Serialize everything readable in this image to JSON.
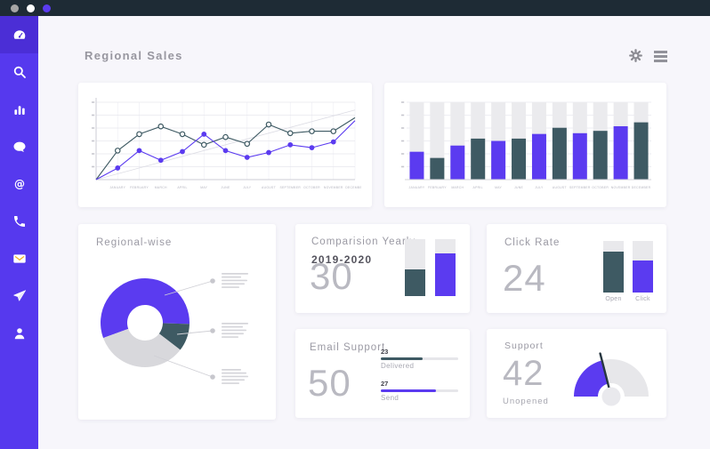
{
  "window": {
    "dots": [
      "#a6a6a6",
      "#ffffff",
      "#5b3bf0"
    ]
  },
  "colors": {
    "topbar": "#1e2b35",
    "sidebar": "#5639ee",
    "sidebar_active": "#4b2ed6",
    "background": "#f7f6fb",
    "card": "#ffffff",
    "accent_purple": "#5b3bf0",
    "dark_teal": "#3e5a63",
    "title_text": "#97969f",
    "big_number": "#b9b9c1"
  },
  "sidebar": {
    "items": [
      {
        "name": "dashboard",
        "icon": "dashboard-gauge-icon",
        "active": true
      },
      {
        "name": "search",
        "icon": "search-icon",
        "active": false
      },
      {
        "name": "analytics",
        "icon": "bar-chart-icon",
        "active": false
      },
      {
        "name": "messages",
        "icon": "chat-bubble-icon",
        "active": false
      },
      {
        "name": "mentions",
        "icon": "at-sign-icon",
        "active": false
      },
      {
        "name": "calls",
        "icon": "phone-icon",
        "active": false
      },
      {
        "name": "mail",
        "icon": "envelope-icon",
        "active": false
      },
      {
        "name": "send",
        "icon": "paper-plane-icon",
        "active": false
      },
      {
        "name": "profile",
        "icon": "user-icon",
        "active": false
      }
    ]
  },
  "header": {
    "title": "Regional Sales",
    "icons": [
      "gear-icon",
      "menu-icon"
    ]
  },
  "chart_data": [
    {
      "id": "regional-sales-line",
      "type": "line",
      "x": [
        "JANUARY",
        "FEBRUARY",
        "MARCH",
        "APRIL",
        "MAY",
        "JUNE",
        "JULY",
        "AUGUST",
        "SEPTEMBER",
        "OCTOBER",
        "NOVEMBER",
        "DECEMBER"
      ],
      "series": [
        {
          "name": "dark",
          "color": "#3e5a63",
          "marker": "open",
          "values": [
            30,
            47,
            55,
            47,
            36,
            44,
            37,
            57,
            48,
            50,
            50,
            64
          ]
        },
        {
          "name": "purple",
          "color": "#5b3bf0",
          "marker": "filled",
          "values": [
            12,
            30,
            20,
            29,
            47,
            30,
            23,
            28,
            36,
            33,
            39,
            61
          ]
        }
      ],
      "trendline": {
        "from": 0,
        "to": 72,
        "color": "#dcdce4"
      },
      "ylim": [
        0,
        80
      ],
      "y_tick_count": 6,
      "grid": true,
      "starts_at_origin": true
    },
    {
      "id": "monthly-bars",
      "type": "bar",
      "categories": [
        "JANUARY",
        "FEBRUARY",
        "MARCH",
        "APRIL",
        "MAY",
        "JUNE",
        "JULY",
        "AUGUST",
        "SEPTEMBER",
        "OCTOBER",
        "NOVEMBER",
        "DECEMBER"
      ],
      "values": [
        36,
        28,
        44,
        53,
        50,
        53,
        59,
        67,
        60,
        63,
        69,
        74
      ],
      "bar_colors": [
        "#5b3bf0",
        "#3e5a63"
      ],
      "alternating": true,
      "track_color": "#ebebee",
      "ylim": [
        0,
        100
      ],
      "y_tick_count": 6
    },
    {
      "id": "regional-wise-donut",
      "type": "pie",
      "title": "Regional-wise",
      "donut": true,
      "start_angle_deg": 200,
      "slices": [
        {
          "color": "#5b3bf0",
          "pct": 56
        },
        {
          "color": "#3e5a63",
          "pct": 10
        },
        {
          "color": "#d8d8dc",
          "pct": 34
        }
      ],
      "callouts": 3
    },
    {
      "id": "comparision-yearly",
      "type": "bar",
      "title": "Comparision Yearly",
      "subtitle": "2019-2020",
      "big_number": "30",
      "track_color": "#e9e9ec",
      "bars": [
        {
          "color": "#3e5a63",
          "fill_pct": 47
        },
        {
          "color": "#5b3bf0",
          "fill_pct": 75
        }
      ]
    },
    {
      "id": "click-rate",
      "type": "bar",
      "title": "Click Rate",
      "big_number": "24",
      "track_color": "#e9e9ec",
      "bars": [
        {
          "label": "Open",
          "color": "#3e5a63",
          "fill_pct": 80
        },
        {
          "label": "Click",
          "color": "#5b3bf0",
          "fill_pct": 62
        }
      ]
    },
    {
      "id": "email-support",
      "type": "bar",
      "title": "Email Support",
      "big_number": "50",
      "track_color": "#e6e6ea",
      "bars": [
        {
          "label": "Delivered",
          "value": 23,
          "color": "#3e5a63",
          "fill_pct": 54
        },
        {
          "label": "Send",
          "value": 27,
          "color": "#5b3bf0",
          "fill_pct": 71
        }
      ]
    },
    {
      "id": "support-gauge",
      "type": "gauge",
      "title": "Support",
      "big_number": "42",
      "label": "Unopened",
      "value_pct": 42,
      "fill_color": "#5b3bf0",
      "track_color": "#e7e7ea",
      "needle_color": "#273640"
    }
  ]
}
